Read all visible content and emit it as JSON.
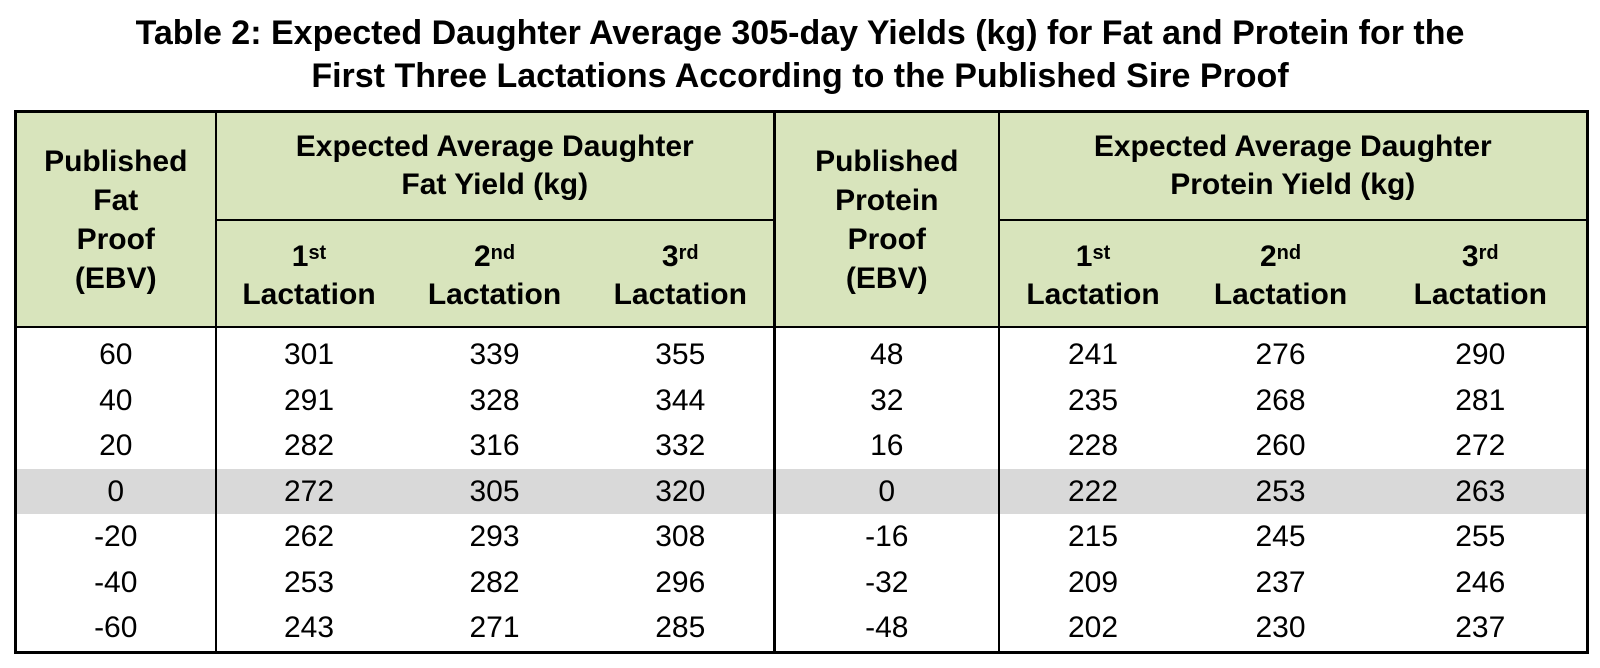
{
  "title": {
    "line1": "Table 2: Expected Daughter Average 305-day Yields (kg) for Fat and Protein for the",
    "line2": "First Three Lactations According to the Published Sire Proof"
  },
  "header": {
    "fat_proof": [
      "Published",
      "Fat",
      "Proof",
      "(EBV)"
    ],
    "fat_group": [
      "Expected Average Daughter",
      "Fat Yield (kg)"
    ],
    "protein_proof": [
      "Published",
      "Protein",
      "Proof",
      "(EBV)"
    ],
    "protein_group": [
      "Expected Average Daughter",
      "Protein Yield (kg)"
    ],
    "lactations": [
      {
        "num": "1",
        "sup": "st",
        "label": "Lactation"
      },
      {
        "num": "2",
        "sup": "nd",
        "label": "Lactation"
      },
      {
        "num": "3",
        "sup": "rd",
        "label": "Lactation"
      }
    ]
  },
  "rows": [
    {
      "fat_proof": "60",
      "fat": [
        "301",
        "339",
        "355"
      ],
      "protein_proof": "48",
      "protein": [
        "241",
        "276",
        "290"
      ],
      "highlight": false
    },
    {
      "fat_proof": "40",
      "fat": [
        "291",
        "328",
        "344"
      ],
      "protein_proof": "32",
      "protein": [
        "235",
        "268",
        "281"
      ],
      "highlight": false
    },
    {
      "fat_proof": "20",
      "fat": [
        "282",
        "316",
        "332"
      ],
      "protein_proof": "16",
      "protein": [
        "228",
        "260",
        "272"
      ],
      "highlight": false
    },
    {
      "fat_proof": "0",
      "fat": [
        "272",
        "305",
        "320"
      ],
      "protein_proof": "0",
      "protein": [
        "222",
        "253",
        "263"
      ],
      "highlight": true
    },
    {
      "fat_proof": "-20",
      "fat": [
        "262",
        "293",
        "308"
      ],
      "protein_proof": "-16",
      "protein": [
        "215",
        "245",
        "255"
      ],
      "highlight": false
    },
    {
      "fat_proof": "-40",
      "fat": [
        "253",
        "282",
        "296"
      ],
      "protein_proof": "-32",
      "protein": [
        "209",
        "237",
        "246"
      ],
      "highlight": false
    },
    {
      "fat_proof": "-60",
      "fat": [
        "243",
        "271",
        "285"
      ],
      "protein_proof": "-48",
      "protein": [
        "202",
        "230",
        "237"
      ],
      "highlight": false
    }
  ],
  "colors": {
    "header_bg": "#d8e4bc",
    "highlight_row_bg": "#d9d9d9",
    "border": "#000000"
  }
}
